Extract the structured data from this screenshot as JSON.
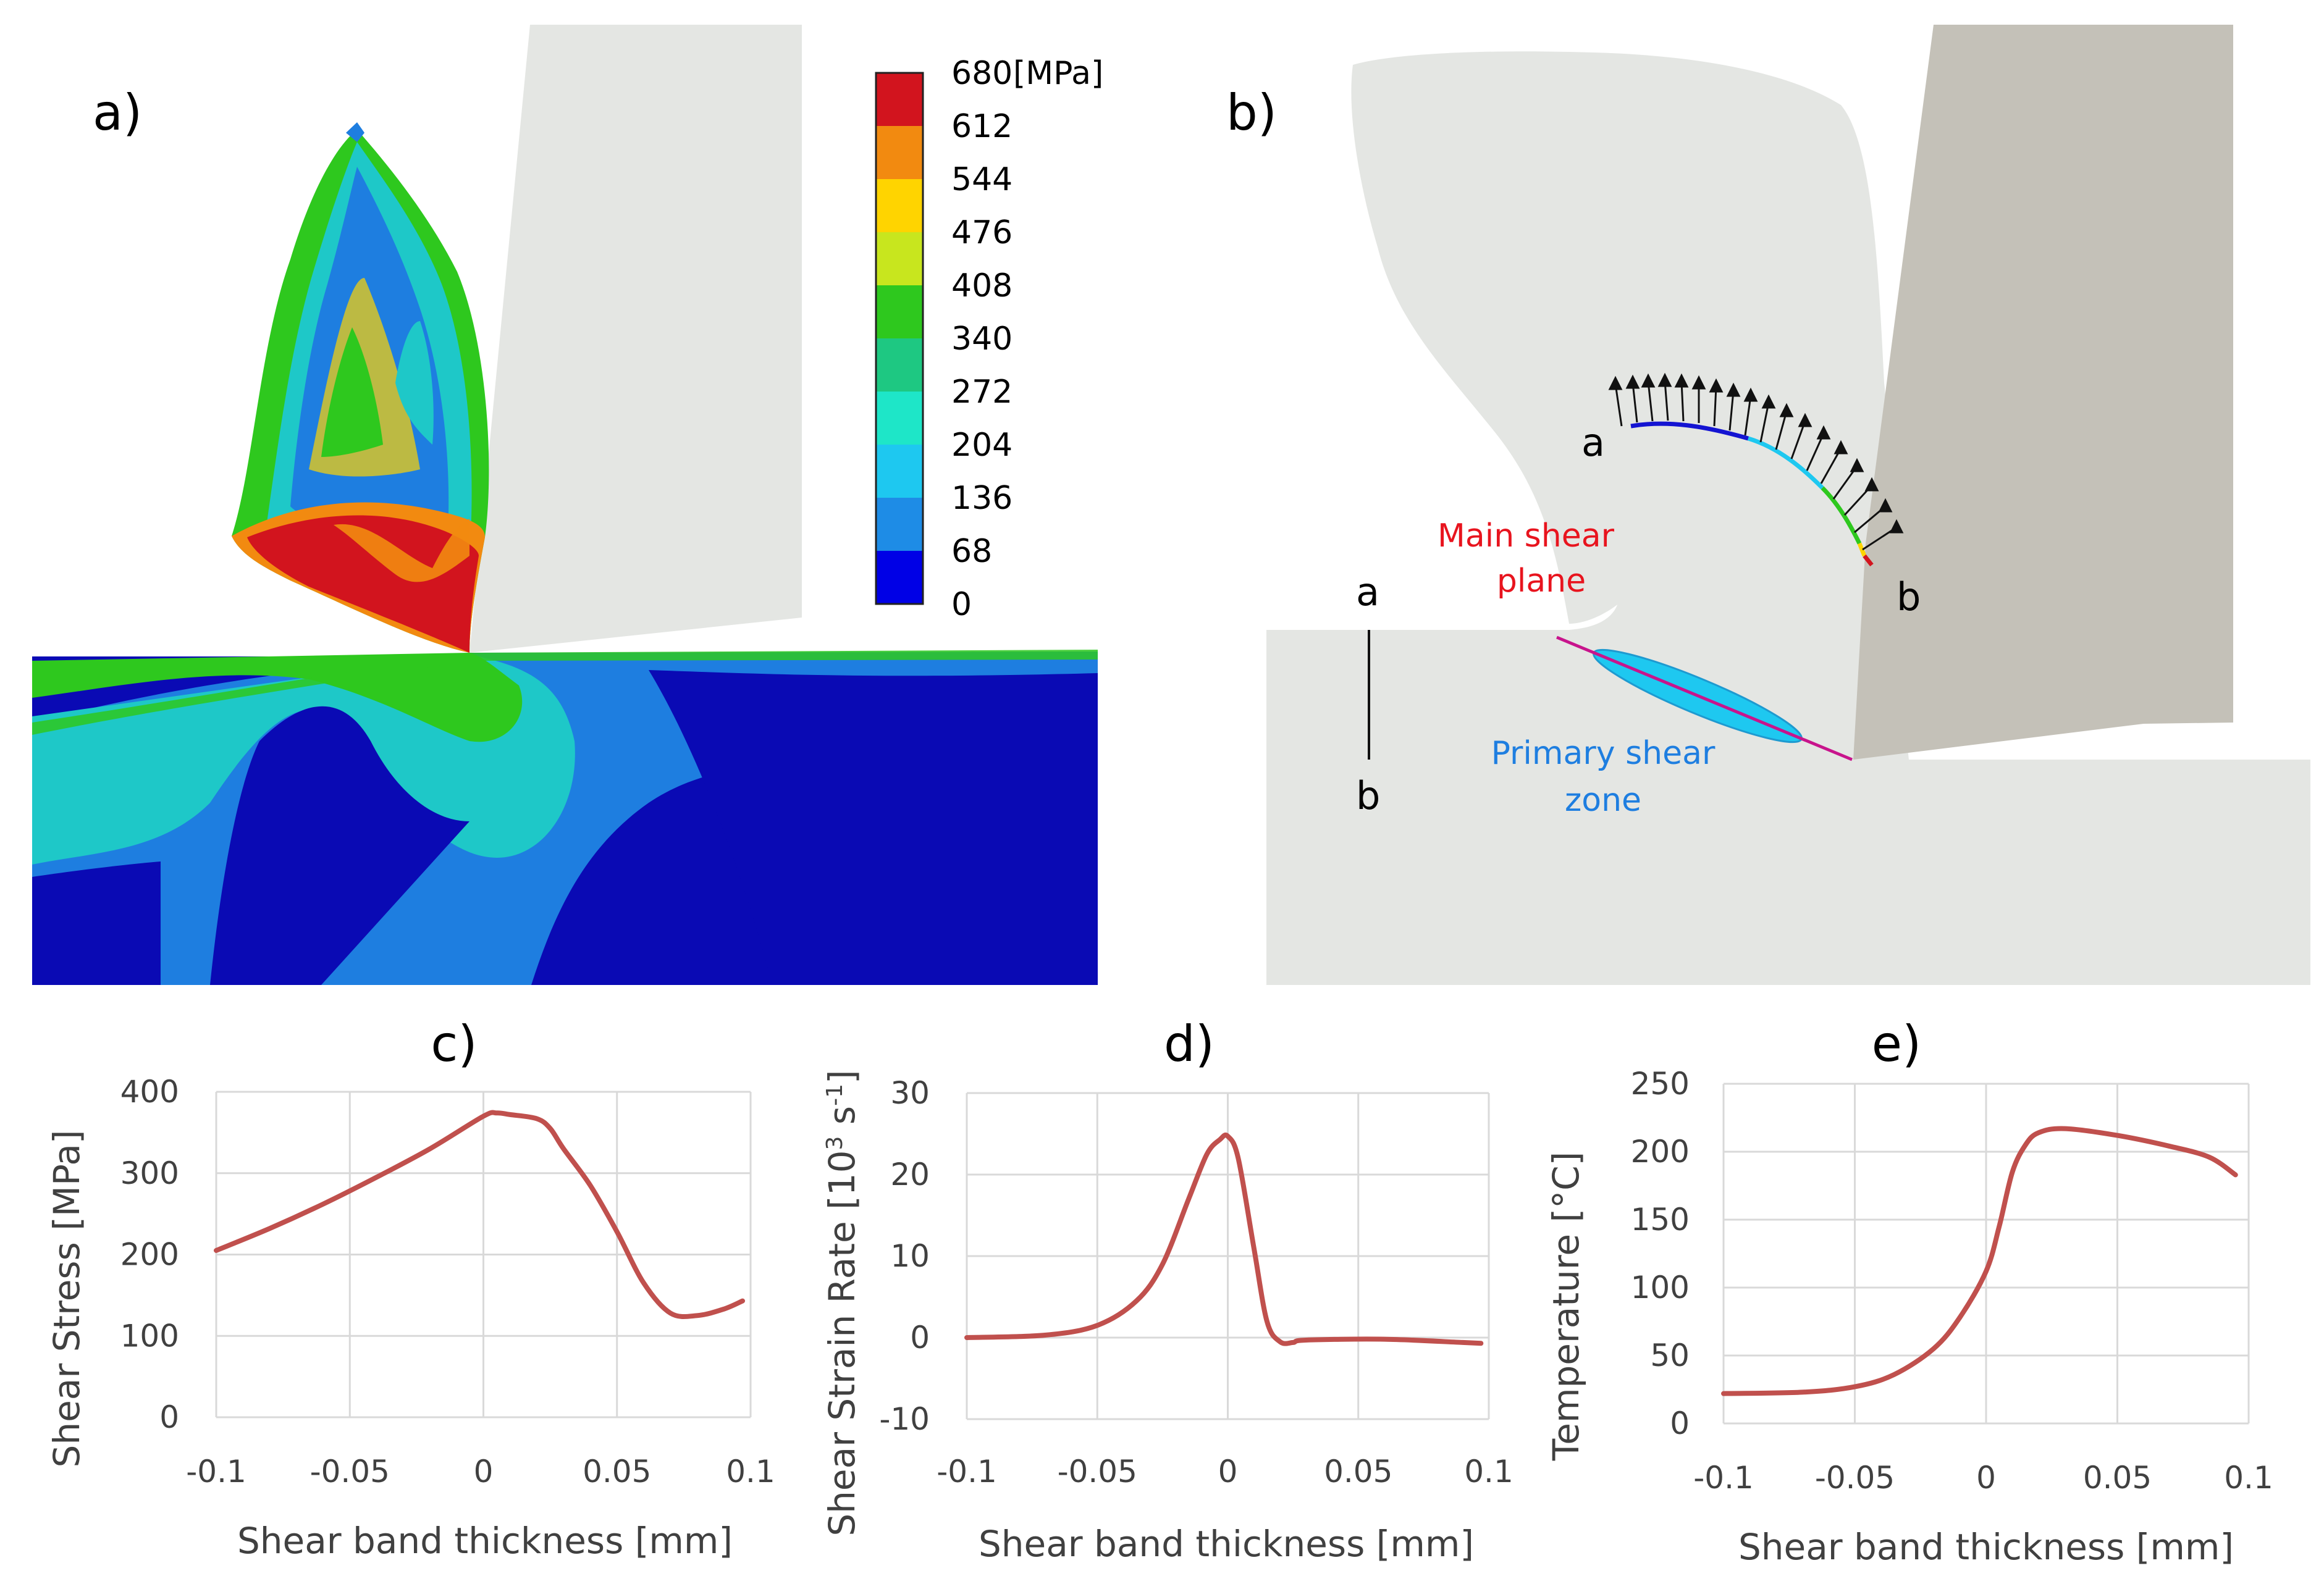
{
  "panel_labels": {
    "a": "a)",
    "b": "b)",
    "c": "c)",
    "d": "d)",
    "e": "e)"
  },
  "colorbar": {
    "unit": "[MPa]",
    "ticks": [
      "680",
      "612",
      "544",
      "476",
      "408",
      "340",
      "272",
      "204",
      "136",
      "68",
      "0"
    ],
    "colors": [
      "#d2141e",
      "#f28a10",
      "#ffd400",
      "#c8e61e",
      "#2ec81e",
      "#1ec882",
      "#1ee6c8",
      "#1ec8f0",
      "#1e8ce6",
      "#0000e6"
    ]
  },
  "panel_b": {
    "path_start": "a",
    "path_end": "b",
    "section_start": "a",
    "section_end": "b",
    "main_shear_label_1": "Main shear",
    "main_shear_label_2": "plane",
    "primary_zone_label_1": "Primary shear",
    "primary_zone_label_2": "zone",
    "main_shear_color": "#e8141e",
    "primary_zone_color": "#1e7ee0"
  },
  "chart_data": [
    {
      "id": "c",
      "type": "line",
      "title": "c)",
      "xlabel": "Shear band thickness [mm]",
      "ylabel": "Shear Stress [MPa]",
      "xlim": [
        -0.1,
        0.1
      ],
      "ylim": [
        0,
        400
      ],
      "xticks": [
        "-0.1",
        "-0.05",
        "0",
        "0.05",
        "0.1"
      ],
      "yticks": [
        "0",
        "100",
        "200",
        "300",
        "400"
      ],
      "grid": true,
      "line_color": "#c0504d",
      "x": [
        -0.1,
        -0.08,
        -0.06,
        -0.04,
        -0.02,
        0.0,
        0.005,
        0.01,
        0.02,
        0.025,
        0.03,
        0.04,
        0.05,
        0.06,
        0.07,
        0.08,
        0.09,
        0.097
      ],
      "y": [
        205,
        232,
        262,
        295,
        330,
        370,
        374,
        372,
        367,
        355,
        330,
        285,
        228,
        165,
        128,
        125,
        133,
        143
      ]
    },
    {
      "id": "d",
      "type": "line",
      "title": "d)",
      "xlabel": "Shear band thickness [mm]",
      "ylabel": "Shear Strain Rate [10",
      "ylabel_sup1": "3",
      "ylabel_mid": " s",
      "ylabel_sup2": "-1",
      "ylabel_end": "]",
      "xlim": [
        -0.1,
        0.1
      ],
      "ylim": [
        -10,
        30
      ],
      "xticks": [
        "-0.1",
        "-0.05",
        "0",
        "0.05",
        "0.1"
      ],
      "yticks": [
        "-10",
        "0",
        "10",
        "20",
        "30"
      ],
      "grid": true,
      "line_color": "#c0504d",
      "x": [
        -0.1,
        -0.07,
        -0.05,
        -0.035,
        -0.025,
        -0.015,
        -0.008,
        -0.003,
        0.0,
        0.004,
        0.01,
        0.015,
        0.02,
        0.025,
        0.03,
        0.06,
        0.09,
        0.097
      ],
      "y": [
        0,
        0.3,
        1.5,
        4.5,
        9.0,
        17.0,
        22.5,
        24.3,
        24.7,
        22.0,
        11.0,
        2.0,
        -0.5,
        -0.6,
        -0.3,
        -0.2,
        -0.6,
        -0.7
      ]
    },
    {
      "id": "e",
      "type": "line",
      "title": "e)",
      "xlabel": "Shear band thickness [mm]",
      "ylabel": "Temperature [°C]",
      "xlim": [
        -0.1,
        0.1
      ],
      "ylim": [
        0,
        250
      ],
      "xticks": [
        "-0.1",
        "-0.05",
        "0",
        "0.05",
        "0.1"
      ],
      "yticks": [
        "0",
        "50",
        "100",
        "150",
        "200",
        "250"
      ],
      "grid": true,
      "line_color": "#c0504d",
      "x": [
        -0.1,
        -0.07,
        -0.05,
        -0.035,
        -0.02,
        -0.01,
        0.0,
        0.005,
        0.01,
        0.015,
        0.02,
        0.03,
        0.05,
        0.07,
        0.085,
        0.095
      ],
      "y": [
        22,
        23,
        27,
        36,
        55,
        78,
        112,
        145,
        185,
        205,
        214,
        217,
        212,
        204,
        196,
        183
      ]
    }
  ]
}
